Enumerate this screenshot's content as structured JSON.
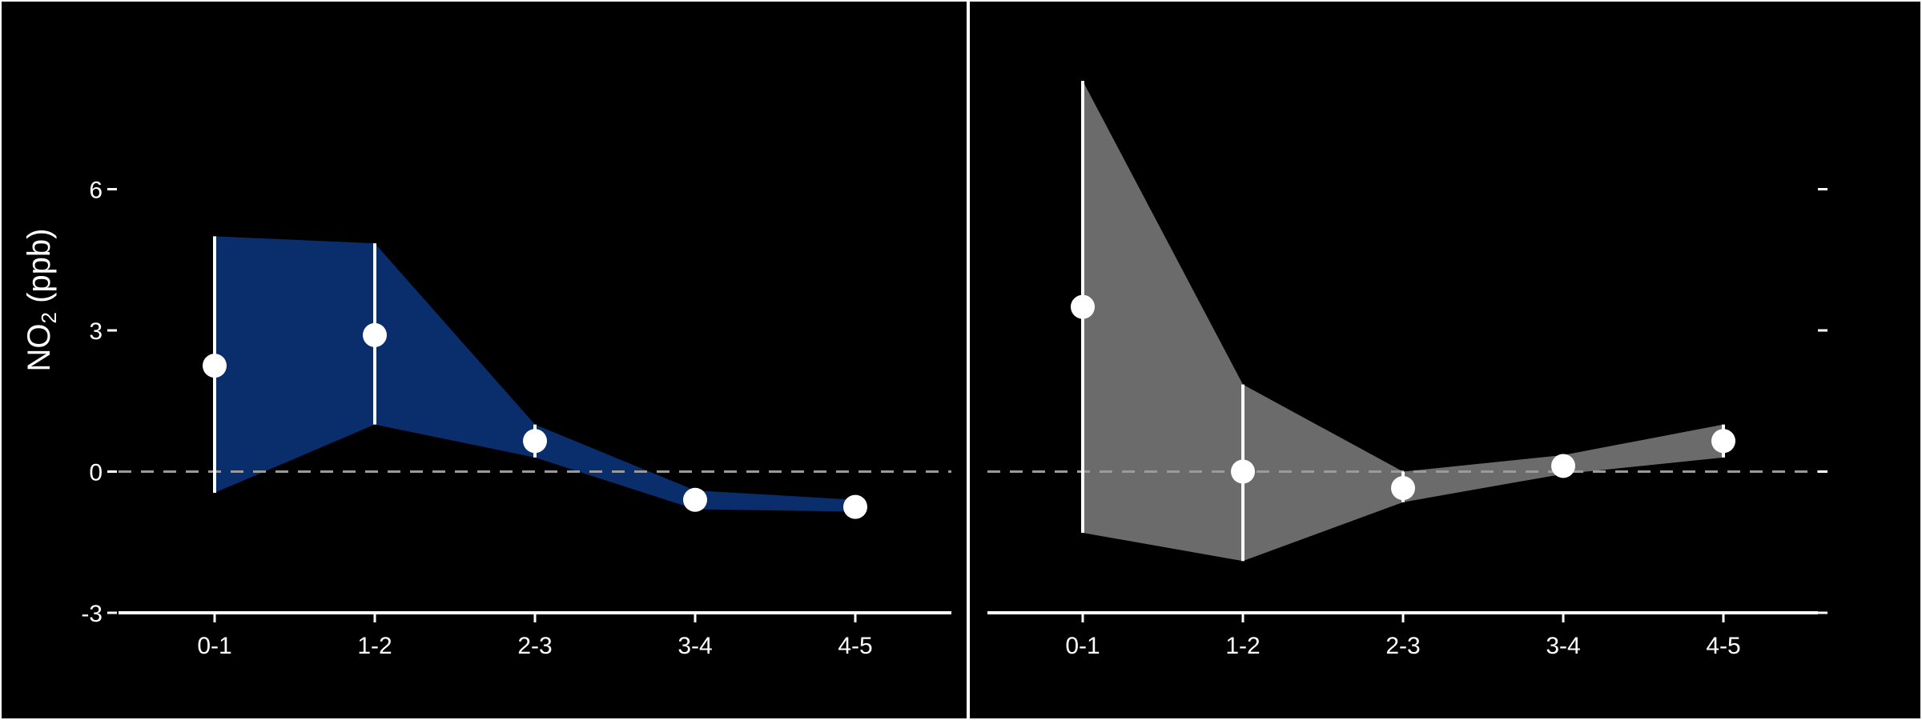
{
  "chart_data": [
    {
      "type": "line",
      "panel": "left",
      "categories": [
        "0-1",
        "1-2",
        "2-3",
        "3-4",
        "4-5"
      ],
      "values": [
        2.25,
        2.9,
        0.65,
        -0.6,
        -0.75
      ],
      "lower": [
        -0.45,
        1.0,
        0.3,
        -0.8,
        -0.85
      ],
      "upper": [
        5.0,
        4.85,
        1.0,
        -0.4,
        -0.6
      ],
      "ylim": [
        -3,
        9
      ],
      "yticks": [
        -3,
        0,
        3,
        6
      ],
      "ylabel": "NO₂ (ppb)",
      "band_color": "#0a2d6b",
      "point_color": "#ffffff",
      "reference_line": 0
    },
    {
      "type": "line",
      "panel": "right",
      "categories": [
        "0-1",
        "1-2",
        "2-3",
        "3-4",
        "4-5"
      ],
      "values": [
        3.5,
        0.0,
        -0.35,
        0.12,
        0.65
      ],
      "lower": [
        -1.3,
        -1.9,
        -0.65,
        -0.05,
        0.3
      ],
      "upper": [
        8.3,
        1.85,
        0.0,
        0.35,
        1.0
      ],
      "ylim": [
        -3,
        9
      ],
      "yticks": [
        -3,
        0,
        3,
        6
      ],
      "band_color": "#6b6b6b",
      "point_color": "#ffffff",
      "reference_line": 0
    }
  ],
  "y_axis": {
    "tick_labels": [
      "-3",
      "0",
      "3",
      "6"
    ],
    "title_main": "NO",
    "title_sub": "2",
    "title_unit": " (ppb)"
  }
}
